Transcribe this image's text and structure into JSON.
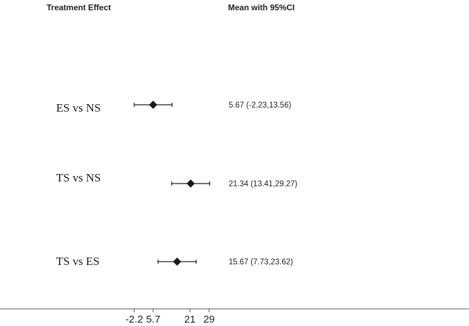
{
  "headers": {
    "left": "Treatment Effect",
    "right": "Mean with 95%CI"
  },
  "chart_data": {
    "type": "forest",
    "rows": [
      {
        "label": "ES vs NS",
        "mean": 5.67,
        "lower": -2.23,
        "upper": 13.56,
        "ci_text": "5.67 (-2.23,13.56)"
      },
      {
        "label": "TS vs NS",
        "mean": 21.34,
        "lower": 13.41,
        "upper": 29.27,
        "ci_text": "21.34 (13.41,29.27)"
      },
      {
        "label": "TS vs ES",
        "mean": 15.67,
        "lower": 7.73,
        "upper": 23.62,
        "ci_text": "15.67 (7.73,23.62)"
      }
    ],
    "x_ticks": [
      {
        "value": -2.2,
        "label": "-2.2"
      },
      {
        "value": 5.7,
        "label": "5.7"
      },
      {
        "value": 21,
        "label": "21"
      },
      {
        "value": 29,
        "label": "29"
      }
    ],
    "grid": false,
    "marker_color": "#1a1a1a"
  }
}
